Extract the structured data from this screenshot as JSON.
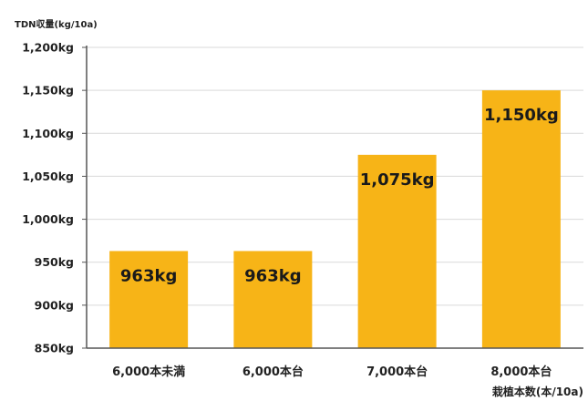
{
  "chart_data": {
    "type": "bar",
    "ylabel": "TDN収量(kg/10a)",
    "xlabel": "栽植本数(本/10a)",
    "categories": [
      "6,000本未満",
      "6,000本台",
      "7,000本台",
      "8,000本台"
    ],
    "values": [
      963,
      963,
      1075,
      1150
    ],
    "data_labels": [
      "963kg",
      "963kg",
      "1,075kg",
      "1,150kg"
    ],
    "ylim": [
      850,
      1200
    ],
    "yticks": [
      850,
      900,
      950,
      1000,
      1050,
      1100,
      1150,
      1200
    ],
    "ytick_labels": [
      "850kg",
      "900kg",
      "950kg",
      "1,000kg",
      "1,050kg",
      "1,100kg",
      "1,150kg",
      "1,200kg"
    ],
    "grid": true,
    "legend": "none",
    "colors": {
      "bar": "#F7B417",
      "grid": "#d9d9d9",
      "axis": "#555555"
    }
  }
}
